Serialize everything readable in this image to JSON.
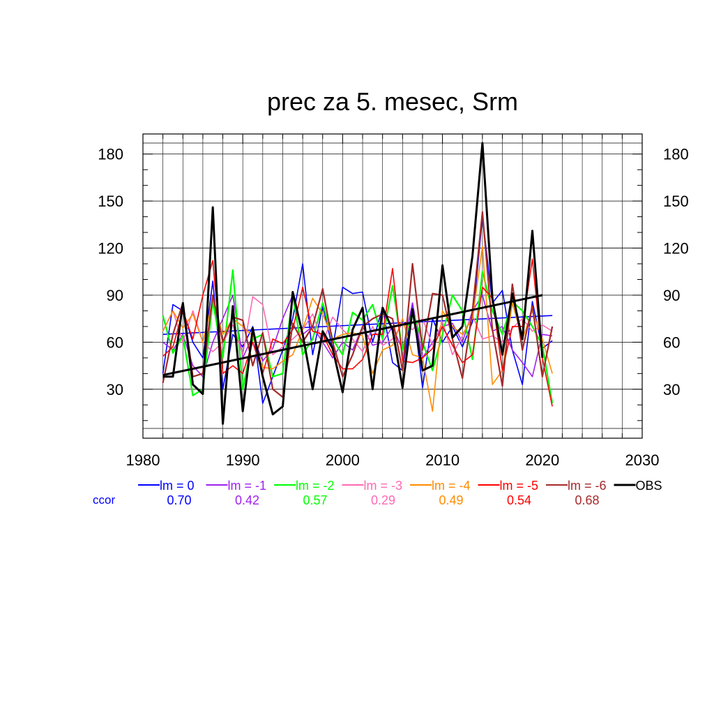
{
  "chart_data": {
    "type": "line",
    "title": "prec za 5. mesec, Srm",
    "xlabel": "",
    "ylabel": "",
    "xlim": [
      1980,
      2030
    ],
    "ylim": [
      5,
      187
    ],
    "x_ticks": [
      1980,
      1990,
      2000,
      2010,
      2020,
      2030
    ],
    "y_ticks": [
      30,
      60,
      90,
      120,
      150,
      180
    ],
    "ccor_label": "ccor",
    "ccor_label_color": "#0000ff",
    "x": [
      1982,
      1983,
      1984,
      1985,
      1986,
      1987,
      1988,
      1989,
      1990,
      1991,
      1992,
      1993,
      1994,
      1995,
      1996,
      1997,
      1998,
      1999,
      2000,
      2001,
      2002,
      2003,
      2004,
      2005,
      2006,
      2007,
      2008,
      2009,
      2010,
      2011,
      2012,
      2013,
      2014,
      2015,
      2016,
      2017,
      2018,
      2019,
      2020,
      2021
    ],
    "series": [
      {
        "name": "lm = 0",
        "color": "#0000ff",
        "width": 1.6,
        "ccor": "0.70",
        "values": [
          40,
          84,
          80,
          60,
          50,
          99,
          30,
          65,
          57,
          70,
          21,
          38,
          55,
          75,
          110,
          52,
          83,
          56,
          95,
          91,
          92,
          60,
          82,
          47,
          42,
          85,
          31,
          75,
          60,
          70,
          57,
          73,
          140,
          85,
          93,
          55,
          33,
          86,
          56,
          61
        ],
        "trend": [
          65,
          77
        ]
      },
      {
        "name": "lm = -1",
        "color": "#a020f0",
        "width": 1.6,
        "ccor": "0.42",
        "values": [
          60,
          55,
          65,
          45,
          38,
          60,
          75,
          90,
          50,
          64,
          48,
          56,
          75,
          90,
          65,
          70,
          60,
          50,
          60,
          55,
          70,
          58,
          60,
          70,
          55,
          85,
          50,
          60,
          70,
          72,
          60,
          80,
          90,
          67,
          70,
          55,
          47,
          38,
          65,
          64
        ]
      },
      {
        "name": "lm = -2",
        "color": "#00ff00",
        "width": 2.2,
        "ccor": "0.57",
        "values": [
          77,
          53,
          64,
          26,
          30,
          86,
          50,
          106,
          30,
          62,
          65,
          38,
          40,
          90,
          52,
          62,
          85,
          62,
          52,
          79,
          74,
          84,
          62,
          96,
          55,
          80,
          60,
          42,
          65,
          90,
          80,
          49,
          105,
          80,
          65,
          86,
          80,
          70,
          58,
          21
        ]
      },
      {
        "name": "lm = -3",
        "color": "#ff69b4",
        "width": 1.6,
        "ccor": "0.29",
        "values": [
          67,
          80,
          60,
          80,
          60,
          54,
          60,
          71,
          52,
          89,
          84,
          52,
          57,
          62,
          68,
          78,
          60,
          76,
          68,
          62,
          54,
          70,
          58,
          62,
          72,
          68,
          75,
          58,
          73,
          52,
          64,
          77,
          62,
          64,
          60,
          69,
          75,
          67,
          71,
          67
        ]
      },
      {
        "name": "lm = -4",
        "color": "#ff8c00",
        "width": 1.6,
        "ccor": "0.49",
        "values": [
          67,
          80,
          69,
          78,
          60,
          87,
          65,
          75,
          70,
          64,
          44,
          43,
          48,
          52,
          68,
          88,
          78,
          62,
          65,
          66,
          64,
          40,
          55,
          58,
          75,
          52,
          50,
          16,
          80,
          70,
          65,
          75,
          121,
          33,
          42,
          85,
          62,
          80,
          62,
          40
        ]
      },
      {
        "name": "lm = -5",
        "color": "#ff0000",
        "width": 1.6,
        "ccor": "0.54",
        "values": [
          51,
          57,
          80,
          62,
          90,
          112,
          40,
          45,
          40,
          60,
          40,
          62,
          59,
          68,
          95,
          67,
          65,
          52,
          43,
          43,
          49,
          65,
          65,
          107,
          48,
          47,
          50,
          56,
          70,
          58,
          47,
          52,
          95,
          88,
          42,
          70,
          70,
          113,
          50,
          19
        ]
      },
      {
        "name": "lm = -6",
        "color": "#a52a2a",
        "width": 2.2,
        "ccor": "0.68",
        "values": [
          34,
          65,
          85,
          38,
          40,
          90,
          60,
          76,
          74,
          45,
          66,
          30,
          25,
          72,
          60,
          70,
          94,
          60,
          38,
          52,
          70,
          75,
          78,
          75,
          42,
          110,
          55,
          91,
          90,
          62,
          37,
          80,
          143,
          68,
          32,
          97,
          55,
          83,
          38,
          70
        ]
      },
      {
        "name": "OBS",
        "color": "#000000",
        "width": 3.0,
        "values": [
          38,
          38,
          85,
          33,
          27,
          146,
          8,
          83,
          16,
          69,
          38,
          14,
          19,
          92,
          65,
          30,
          67,
          56,
          28,
          68,
          82,
          30,
          82,
          68,
          31,
          81,
          42,
          45,
          109,
          63,
          70,
          115,
          187,
          88,
          52,
          91,
          62,
          131,
          50,
          null
        ],
        "trend_x": [
          1982,
          2020
        ],
        "trend": [
          39,
          90
        ]
      }
    ]
  }
}
